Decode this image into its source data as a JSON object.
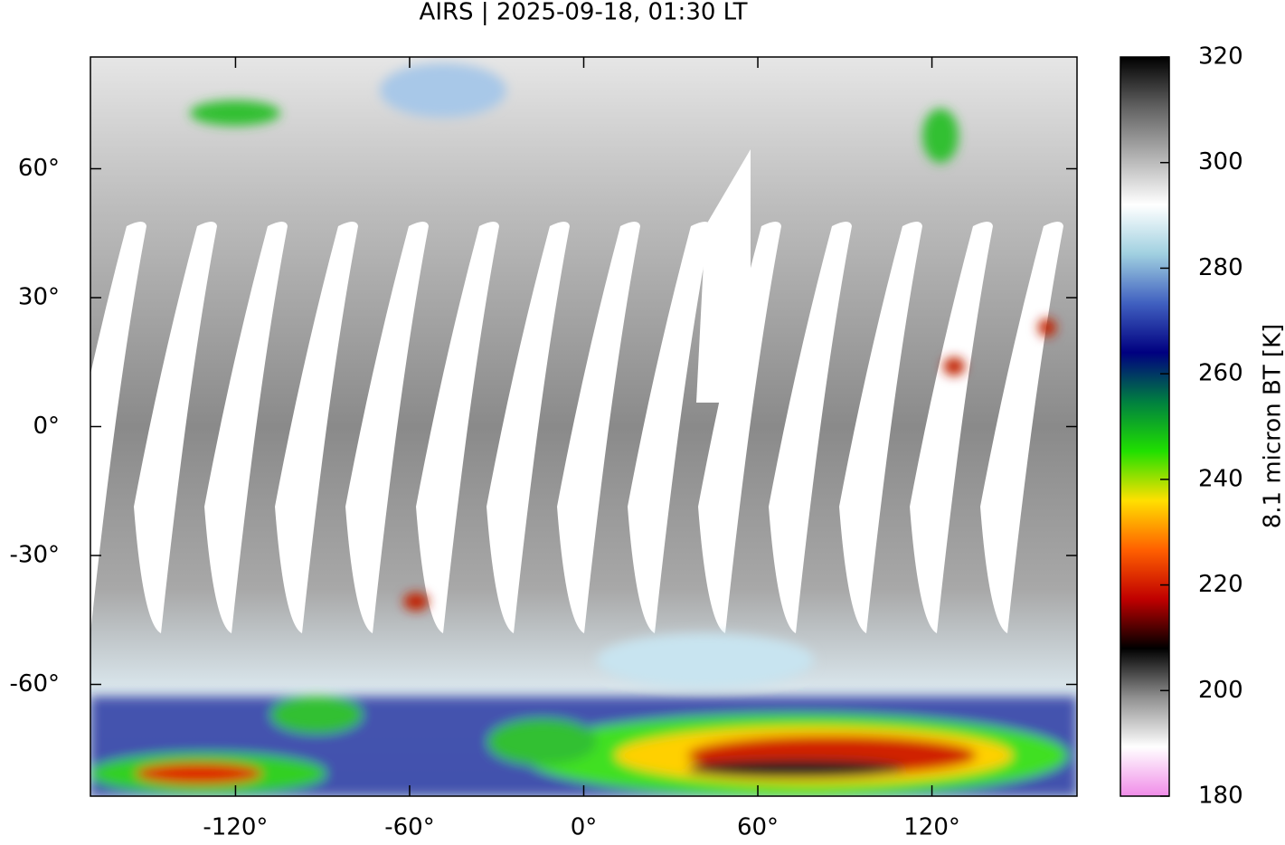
{
  "chart_data": {
    "type": "map",
    "title": "AIRS | 2025-09-18, 01:30 LT",
    "xlim": [
      -170,
      170
    ],
    "ylim": [
      -86,
      86
    ],
    "xticks": [
      {
        "value": -120,
        "label": "-120°"
      },
      {
        "value": -60,
        "label": "-60°"
      },
      {
        "value": 0,
        "label": "0°"
      },
      {
        "value": 60,
        "label": "60°"
      },
      {
        "value": 120,
        "label": "120°"
      }
    ],
    "yticks": [
      {
        "value": 60,
        "label": "60°"
      },
      {
        "value": 30,
        "label": "30°"
      },
      {
        "value": 0,
        "label": "0°"
      },
      {
        "value": -30,
        "label": "-30°"
      },
      {
        "value": -60,
        "label": "-60°"
      }
    ],
    "colorbar": {
      "label": "8.1 micron BT [K]",
      "clim": [
        180,
        320
      ],
      "ticks": [
        180,
        200,
        220,
        240,
        260,
        280,
        300,
        320
      ],
      "colormap": [
        "#f08ce8",
        "#ffffff",
        "#909090",
        "#000000",
        "#c00000",
        "#ff6000",
        "#ffe000",
        "#20e000",
        "#008040",
        "#000080",
        "#4060c0",
        "#a0d0e0",
        "#ffffff",
        "#b0b0b0",
        "#606060",
        "#000000"
      ]
    }
  }
}
